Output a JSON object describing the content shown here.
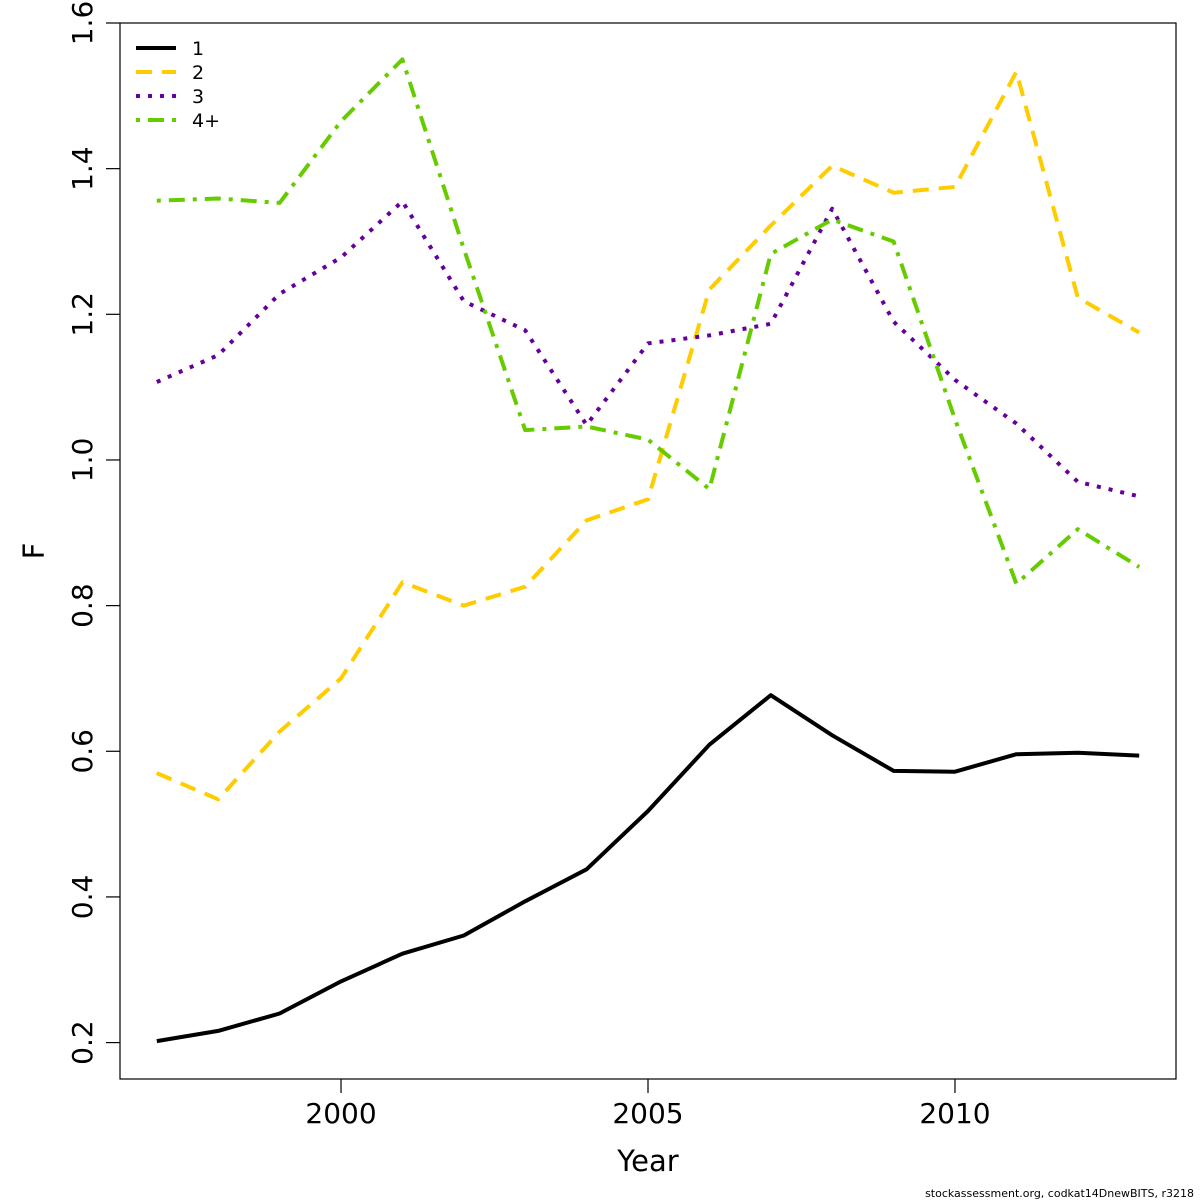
{
  "chart_data": {
    "type": "line",
    "xlabel": "Year",
    "ylabel": "F",
    "xlim": [
      1996.4,
      2013.6
    ],
    "ylim": [
      0.15,
      1.6
    ],
    "x_ticks": [
      2000,
      2005,
      2010
    ],
    "x_tick_labels": [
      "2000",
      "2005",
      "2010"
    ],
    "y_ticks": [
      0.2,
      0.4,
      0.6,
      0.8,
      1.0,
      1.2,
      1.4,
      1.6
    ],
    "y_tick_labels": [
      "0.2",
      "0.4",
      "0.6",
      "0.8",
      "1.0",
      "1.2",
      "1.4",
      "1.6"
    ],
    "grid": false,
    "legend_position": "top-left",
    "x": [
      1997,
      1998,
      1999,
      2000,
      2001,
      2002,
      2003,
      2004,
      2005,
      2006,
      2007,
      2008,
      2009,
      2010,
      2011,
      2012,
      2013
    ],
    "series": [
      {
        "name": "1",
        "color": "#000000",
        "dash": "solid",
        "values": [
          0.202,
          0.216,
          0.24,
          0.284,
          0.322,
          0.347,
          0.394,
          0.438,
          0.518,
          0.609,
          0.677,
          0.622,
          0.573,
          0.572,
          0.596,
          0.598,
          0.594
        ]
      },
      {
        "name": "2",
        "color": "#FFCC00",
        "dash": "dashed",
        "values": [
          0.57,
          0.534,
          0.627,
          0.7,
          0.832,
          0.8,
          0.826,
          0.917,
          0.946,
          1.234,
          1.322,
          1.404,
          1.367,
          1.375,
          1.533,
          1.223,
          1.175
        ]
      },
      {
        "name": "3",
        "color": "#660099",
        "dash": "dotted",
        "values": [
          1.107,
          1.144,
          1.228,
          1.278,
          1.355,
          1.218,
          1.178,
          1.048,
          1.16,
          1.171,
          1.187,
          1.345,
          1.19,
          1.11,
          1.05,
          0.97,
          0.95
        ]
      },
      {
        "name": "4+",
        "color": "#66CC00",
        "dash": "dotdash",
        "values": [
          1.356,
          1.359,
          1.353,
          1.465,
          1.55,
          1.29,
          1.041,
          1.046,
          1.028,
          0.96,
          1.283,
          1.33,
          1.3,
          1.056,
          0.83,
          0.905,
          0.853
        ]
      }
    ]
  },
  "credit": "stockassessment.org, codkat14DnewBITS, r3218"
}
